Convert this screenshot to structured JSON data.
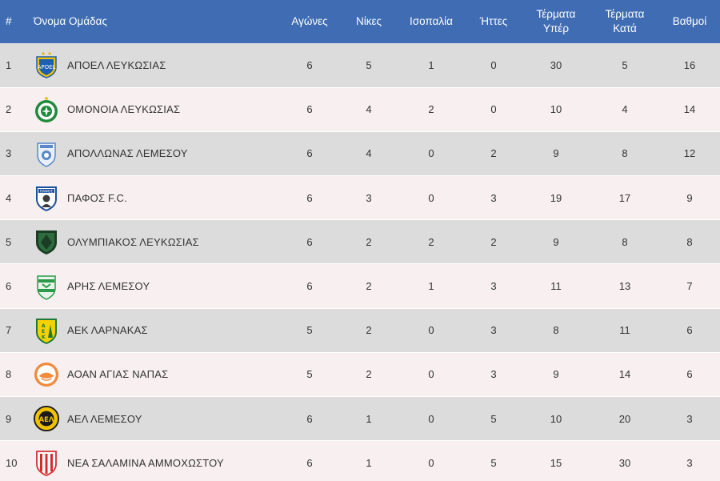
{
  "header": {
    "pos": "#",
    "team": "Όνομα Ομάδας",
    "played": "Αγώνες",
    "wins": "Νίκες",
    "draws": "Ισοπαλία",
    "losses": "Ήττες",
    "goals_for_1": "Τέρματα",
    "goals_for_2": "Υπέρ",
    "goals_against_1": "Τέρματα",
    "goals_against_2": "Κατά",
    "points": "Βαθμοί"
  },
  "colors": {
    "header_bg": "#3f6cb2",
    "row_odd": "#dcdcdc",
    "row_even": "#f7eff0"
  },
  "rows": [
    {
      "pos": "1",
      "name": "ΑΠΟΕΛ ΛΕΥΚΩΣΙΑΣ",
      "crest": "apoel-crest-icon",
      "played": "6",
      "wins": "5",
      "draws": "1",
      "losses": "0",
      "gf": "30",
      "ga": "5",
      "pts": "16"
    },
    {
      "pos": "2",
      "name": "ΟΜΟΝΟΙΑ ΛΕΥΚΩΣΙΑΣ",
      "crest": "omonia-crest-icon",
      "played": "6",
      "wins": "4",
      "draws": "2",
      "losses": "0",
      "gf": "10",
      "ga": "4",
      "pts": "14"
    },
    {
      "pos": "3",
      "name": "ΑΠΟΛΛΩΝΑΣ ΛΕΜΕΣΟΥ",
      "crest": "apollon-crest-icon",
      "played": "6",
      "wins": "4",
      "draws": "0",
      "losses": "2",
      "gf": "9",
      "ga": "8",
      "pts": "12"
    },
    {
      "pos": "4",
      "name": "ΠΑΦΟΣ F.C.",
      "crest": "pafos-crest-icon",
      "played": "6",
      "wins": "3",
      "draws": "0",
      "losses": "3",
      "gf": "19",
      "ga": "17",
      "pts": "9"
    },
    {
      "pos": "5",
      "name": "ΟΛΥΜΠΙΑΚΟΣ ΛΕΥΚΩΣΙΑΣ",
      "crest": "olympiakos-crest-icon",
      "played": "6",
      "wins": "2",
      "draws": "2",
      "losses": "2",
      "gf": "9",
      "ga": "8",
      "pts": "8"
    },
    {
      "pos": "6",
      "name": "ΑΡΗΣ ΛΕΜΕΣΟΥ",
      "crest": "aris-crest-icon",
      "played": "6",
      "wins": "2",
      "draws": "1",
      "losses": "3",
      "gf": "11",
      "ga": "13",
      "pts": "7"
    },
    {
      "pos": "7",
      "name": "ΑΕΚ ΛΑΡΝΑΚΑΣ",
      "crest": "aek-crest-icon",
      "played": "5",
      "wins": "2",
      "draws": "0",
      "losses": "3",
      "gf": "8",
      "ga": "11",
      "pts": "6"
    },
    {
      "pos": "8",
      "name": "ΑΟΑΝ ΑΓΙΑΣ ΝΑΠΑΣ",
      "crest": "aoan-crest-icon",
      "played": "5",
      "wins": "2",
      "draws": "0",
      "losses": "3",
      "gf": "9",
      "ga": "14",
      "pts": "6"
    },
    {
      "pos": "9",
      "name": "ΑΕΛ ΛΕΜΕΣΟΥ",
      "crest": "ael-crest-icon",
      "played": "6",
      "wins": "1",
      "draws": "0",
      "losses": "5",
      "gf": "10",
      "ga": "20",
      "pts": "3"
    },
    {
      "pos": "10",
      "name": "ΝΕΑ ΣΑΛΑΜΙΝΑ ΑΜΜΟΧΩΣΤΟΥ",
      "crest": "nea-salamina-crest-icon",
      "played": "6",
      "wins": "1",
      "draws": "0",
      "losses": "5",
      "gf": "15",
      "ga": "30",
      "pts": "3"
    }
  ]
}
